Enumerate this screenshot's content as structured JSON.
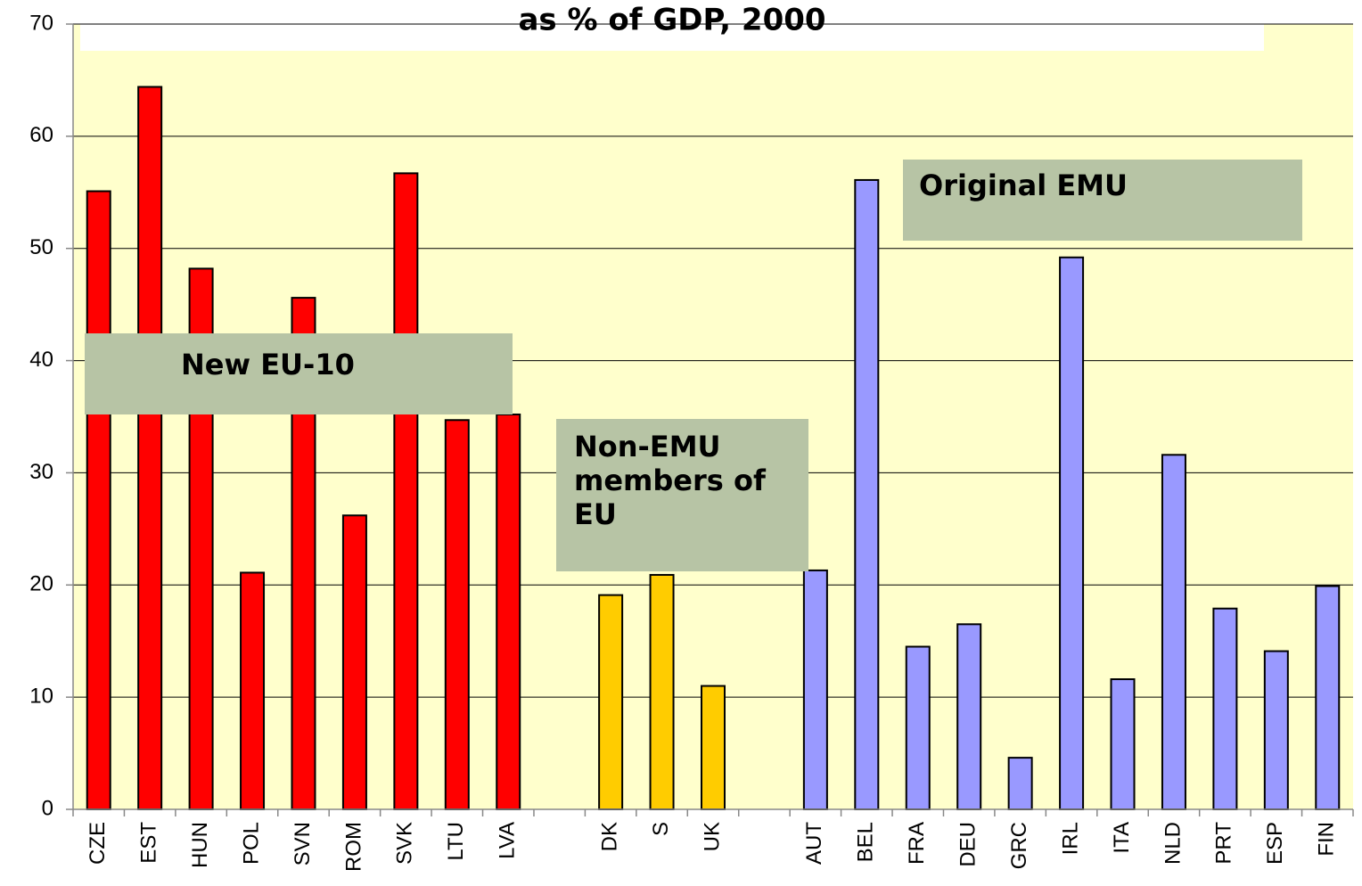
{
  "chart_data": {
    "type": "bar",
    "title": "as % of GDP, 2000",
    "categories": [
      "CZE",
      "EST",
      "HUN",
      "POL",
      "SVN",
      "ROM",
      "SVK",
      "LTU",
      "LVA",
      null,
      "DK",
      "S",
      "UK",
      null,
      "AUT",
      "BEL",
      "FRA",
      "DEU",
      "GRC",
      "IRL",
      "ITA",
      "NLD",
      "PRT",
      "ESP",
      "FIN"
    ],
    "values": [
      55.1,
      64.4,
      48.2,
      21.1,
      45.6,
      26.2,
      56.7,
      34.7,
      35.2,
      null,
      19.1,
      20.9,
      11.0,
      null,
      21.3,
      56.1,
      14.5,
      16.5,
      4.6,
      49.2,
      11.6,
      31.6,
      17.9,
      14.1,
      19.9
    ],
    "colors": [
      "#ff0000",
      "#ff0000",
      "#ff0000",
      "#ff0000",
      "#ff0000",
      "#ff0000",
      "#ff0000",
      "#ff0000",
      "#ff0000",
      null,
      "#ffcc00",
      "#ffcc00",
      "#ffcc00",
      null,
      "#9999ff",
      "#9999ff",
      "#9999ff",
      "#9999ff",
      "#9999ff",
      "#9999ff",
      "#9999ff",
      "#9999ff",
      "#9999ff",
      "#9999ff",
      "#9999ff"
    ],
    "ylim": [
      0,
      70
    ],
    "yticks": [
      0,
      10,
      20,
      30,
      40,
      50,
      60,
      70
    ],
    "grid": true,
    "annotations": [
      "New EU-10",
      "Non-EMU members of EU",
      "Original EMU"
    ]
  }
}
